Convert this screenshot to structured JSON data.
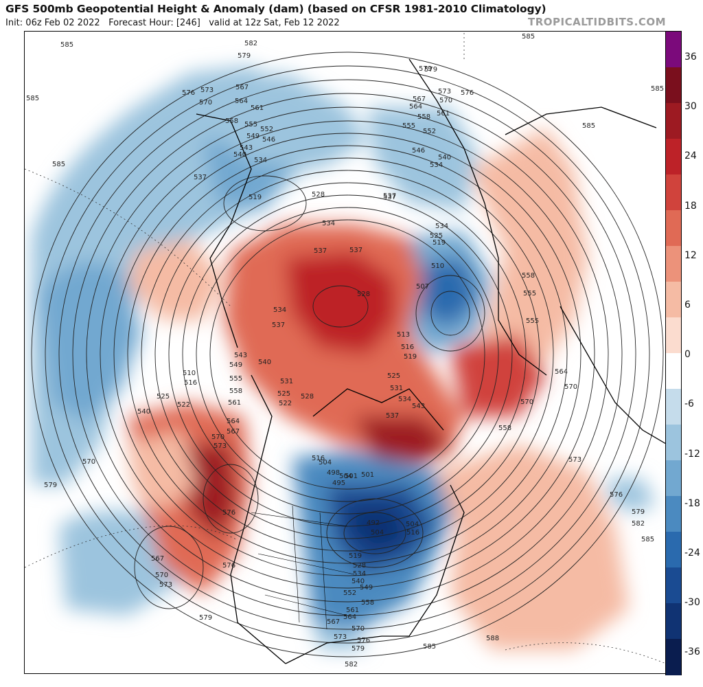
{
  "header": {
    "title": "GFS 500mb Geopotential Height & Anomaly (dam) (based on CFSR 1981-2010 Climatology)",
    "init": "Init: 06z Feb 02 2022",
    "forecast_hour": "Forecast Hour: [246]",
    "valid": "valid at 12z Sat, Feb 12 2022",
    "source": "TROPICALTIDBITS.COM"
  },
  "colorbar": {
    "ticks": [
      "36",
      "30",
      "24",
      "18",
      "12",
      "6",
      "0",
      "-6",
      "-12",
      "-18",
      "-24",
      "-30",
      "-36"
    ],
    "colors": [
      "#7b0a7b",
      "#7a0f1d",
      "#9d1a22",
      "#bd2228",
      "#d0433c",
      "#e06a55",
      "#ec927a",
      "#f5bba4",
      "#fbdccf",
      "#ffffff",
      "#c5dceb",
      "#9cc4de",
      "#72a8d0",
      "#4b8ac0",
      "#2a6aae",
      "#1a4b92",
      "#103373",
      "#0a1d4f"
    ]
  },
  "map": {
    "contour_labels": [
      "585",
      "582",
      "579",
      "576",
      "573",
      "570",
      "567",
      "564",
      "561",
      "558",
      "555",
      "552",
      "549",
      "546",
      "543",
      "540",
      "537",
      "534",
      "531",
      "528",
      "525",
      "522",
      "519",
      "516",
      "513",
      "510",
      "507",
      "504",
      "501",
      "498",
      "495",
      "492",
      "588"
    ]
  }
}
